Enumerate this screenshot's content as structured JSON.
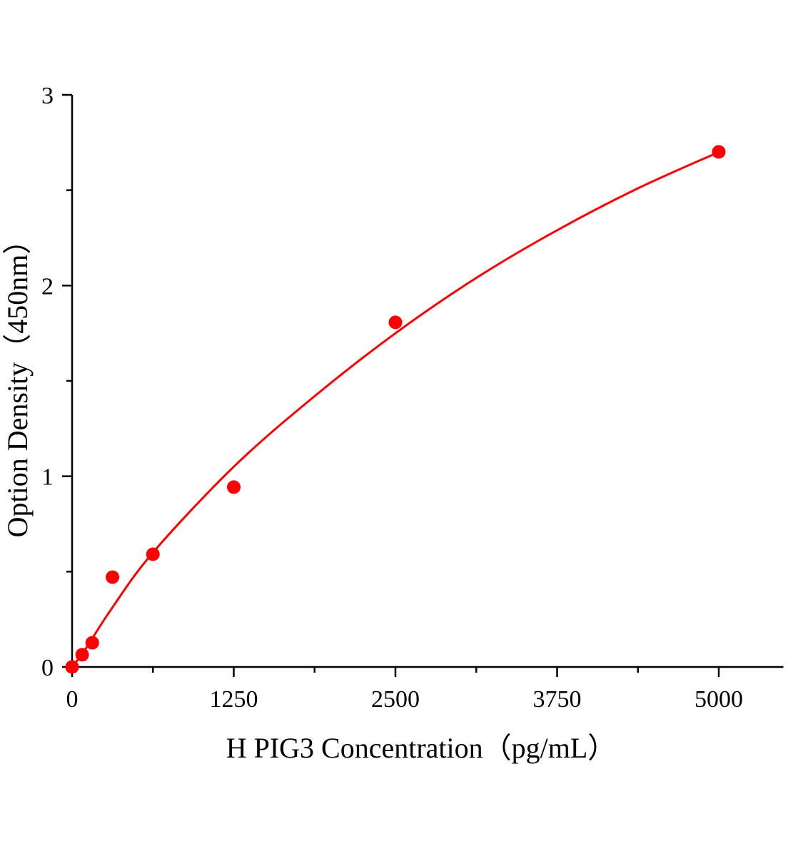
{
  "chart_data": {
    "type": "scatter",
    "title": "",
    "xlabel": "H PIG3 Concentration（pg/mL）",
    "ylabel": "Option Density（450nm）",
    "xlim": [
      0,
      5500
    ],
    "ylim": [
      0,
      3
    ],
    "x_ticks": [
      0,
      1250,
      2500,
      3750,
      5000
    ],
    "x_tick_labels": [
      "0",
      "1250",
      "2500",
      "3750",
      "5000"
    ],
    "x_minor_ticks": [
      625,
      1875,
      3125,
      4375
    ],
    "y_ticks": [
      0,
      1,
      2,
      3
    ],
    "y_tick_labels": [
      "0",
      "1",
      "2",
      "3"
    ],
    "y_minor_ticks": [
      0.5,
      1.5,
      2.5
    ],
    "grid": false,
    "color": "#ff0000",
    "points": {
      "x": [
        0,
        78.125,
        156.25,
        312.5,
        625,
        1250,
        2500,
        5000
      ],
      "y": [
        0.0,
        0.064,
        0.127,
        0.471,
        0.591,
        0.943,
        1.807,
        2.701
      ]
    },
    "fit_curve": {
      "x": [
        0,
        100,
        300,
        625,
        1250,
        1875,
        2500,
        3125,
        3750,
        4375,
        5000
      ],
      "y": [
        0,
        0.09,
        0.3,
        0.6,
        1.05,
        1.42,
        1.75,
        2.04,
        2.29,
        2.51,
        2.7
      ]
    }
  }
}
